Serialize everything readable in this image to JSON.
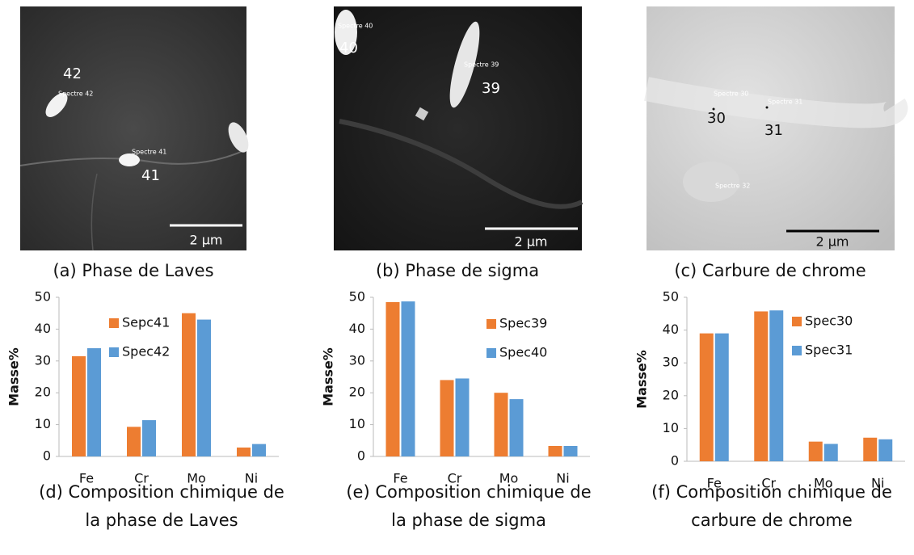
{
  "images": [
    {
      "caption": "(a) Phase de Laves",
      "labels": [
        "42",
        "Spectre 42",
        "Spectre 41",
        "41"
      ],
      "scale": "2 µm"
    },
    {
      "caption": "(b) Phase de sigma",
      "labels": [
        "Spectre 40",
        "40",
        "Spectre 39",
        "39"
      ],
      "scale": "2 µm"
    },
    {
      "caption": "(c) Carbure de chrome",
      "labels": [
        "Spectre 30",
        "30",
        "Spectre 31",
        "31",
        "Spectre 32"
      ],
      "scale": "2 µm"
    }
  ],
  "chart_data": [
    {
      "type": "bar",
      "caption": [
        "(d) Composition chimique de",
        "la phase de Laves"
      ],
      "ylabel": "Masse%",
      "categories": [
        "Fe",
        "Cr",
        "Mo",
        "Ni"
      ],
      "series": [
        {
          "name": "Sepc41",
          "color": "#ed7d31",
          "values": [
            31.5,
            9.3,
            45,
            2.8
          ]
        },
        {
          "name": "Spec42",
          "color": "#5b9bd5",
          "values": [
            34,
            11.4,
            43,
            3.9
          ]
        }
      ],
      "ylim": [
        0,
        50
      ],
      "yticks": [
        0,
        10,
        20,
        30,
        40,
        50
      ]
    },
    {
      "type": "bar",
      "caption": [
        "(e) Composition chimique de",
        "la phase de sigma"
      ],
      "ylabel": "Masse%",
      "categories": [
        "Fe",
        "Cr",
        "Mo",
        "Ni"
      ],
      "series": [
        {
          "name": "Spec39",
          "color": "#ed7d31",
          "values": [
            48.5,
            24,
            20,
            3.3
          ]
        },
        {
          "name": "Spec40",
          "color": "#5b9bd5",
          "values": [
            48.7,
            24.5,
            18,
            3.3
          ]
        }
      ],
      "ylim": [
        0,
        50
      ],
      "yticks": [
        0,
        10,
        20,
        30,
        40,
        50
      ]
    },
    {
      "type": "bar",
      "caption": [
        "(f) Composition chimique de",
        "carbure de chrome"
      ],
      "ylabel": "Masse%",
      "categories": [
        "Fe",
        "Cr",
        "Mo",
        "Ni"
      ],
      "series": [
        {
          "name": "Spec30",
          "color": "#ed7d31",
          "values": [
            39,
            45.7,
            6,
            7.2
          ]
        },
        {
          "name": "Spec31",
          "color": "#5b9bd5",
          "values": [
            39,
            46,
            5.3,
            6.7
          ]
        }
      ],
      "ylim": [
        0,
        50
      ],
      "yticks": [
        0,
        10,
        20,
        30,
        40,
        50
      ]
    }
  ]
}
